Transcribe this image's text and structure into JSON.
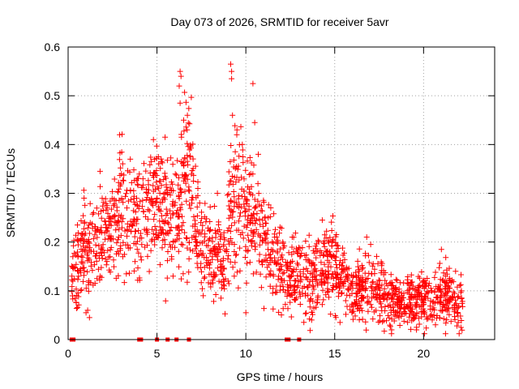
{
  "chart_data": {
    "type": "scatter",
    "title": "Day 073 of 2026, SRMTID for receiver 5avr",
    "xlabel": "GPS time / hours",
    "ylabel": "SRMTID / TECUs",
    "xlim": [
      0,
      24
    ],
    "ylim": [
      0,
      0.6
    ],
    "x_ticks": [
      0,
      5,
      10,
      15,
      20
    ],
    "x_tick_labels": [
      "0",
      "5",
      "10",
      "15",
      "20"
    ],
    "y_ticks": [
      0,
      0.1,
      0.2,
      0.3,
      0.4,
      0.5,
      0.6
    ],
    "y_tick_labels": [
      "0",
      "0.1",
      "0.2",
      "0.3",
      "0.4",
      "0.5",
      "0.6"
    ],
    "grid": true,
    "marker": "plus",
    "color": "#ff0000",
    "gap_markers_x": [
      0.2,
      0.3,
      4.0,
      4.1,
      5.0,
      5.6,
      6.1,
      6.8,
      12.3,
      12.4,
      13.0
    ],
    "series": [
      {
        "name": "SRMTID",
        "x_start": 0.2,
        "x_end": 22.2,
        "envelope": [
          {
            "x": 0.2,
            "mean": 0.12,
            "spread": 0.05
          },
          {
            "x": 0.8,
            "mean": 0.18,
            "spread": 0.07
          },
          {
            "x": 1.5,
            "mean": 0.2,
            "spread": 0.06
          },
          {
            "x": 2.3,
            "mean": 0.22,
            "spread": 0.07
          },
          {
            "x": 3.0,
            "mean": 0.27,
            "spread": 0.09
          },
          {
            "x": 4.0,
            "mean": 0.24,
            "spread": 0.08
          },
          {
            "x": 4.9,
            "mean": 0.28,
            "spread": 0.07
          },
          {
            "x": 6.0,
            "mean": 0.25,
            "spread": 0.09
          },
          {
            "x": 6.6,
            "mean": 0.33,
            "spread": 0.12
          },
          {
            "x": 7.6,
            "mean": 0.18,
            "spread": 0.06
          },
          {
            "x": 8.7,
            "mean": 0.16,
            "spread": 0.06
          },
          {
            "x": 9.3,
            "mean": 0.3,
            "spread": 0.12
          },
          {
            "x": 10.3,
            "mean": 0.27,
            "spread": 0.09
          },
          {
            "x": 11.4,
            "mean": 0.17,
            "spread": 0.06
          },
          {
            "x": 12.5,
            "mean": 0.13,
            "spread": 0.05
          },
          {
            "x": 14.0,
            "mean": 0.13,
            "spread": 0.05
          },
          {
            "x": 14.8,
            "mean": 0.15,
            "spread": 0.06
          },
          {
            "x": 16.0,
            "mean": 0.1,
            "spread": 0.04
          },
          {
            "x": 17.0,
            "mean": 0.11,
            "spread": 0.05
          },
          {
            "x": 18.5,
            "mean": 0.08,
            "spread": 0.035
          },
          {
            "x": 20.0,
            "mean": 0.08,
            "spread": 0.035
          },
          {
            "x": 21.2,
            "mean": 0.09,
            "spread": 0.04
          },
          {
            "x": 22.2,
            "mean": 0.08,
            "spread": 0.04
          }
        ],
        "peaks": [
          {
            "x": 0.9,
            "y": 0.29
          },
          {
            "x": 1.8,
            "y": 0.345
          },
          {
            "x": 2.9,
            "y": 0.42
          },
          {
            "x": 3.5,
            "y": 0.37
          },
          {
            "x": 4.8,
            "y": 0.41
          },
          {
            "x": 6.3,
            "y": 0.55
          },
          {
            "x": 6.35,
            "y": 0.54
          },
          {
            "x": 6.25,
            "y": 0.52
          },
          {
            "x": 6.3,
            "y": 0.485
          },
          {
            "x": 6.5,
            "y": 0.45
          },
          {
            "x": 6.7,
            "y": 0.43
          },
          {
            "x": 7.3,
            "y": 0.31
          },
          {
            "x": 8.4,
            "y": 0.3
          },
          {
            "x": 9.15,
            "y": 0.565
          },
          {
            "x": 9.2,
            "y": 0.55
          },
          {
            "x": 9.2,
            "y": 0.535
          },
          {
            "x": 9.25,
            "y": 0.46
          },
          {
            "x": 9.5,
            "y": 0.43
          },
          {
            "x": 9.8,
            "y": 0.4
          },
          {
            "x": 10.4,
            "y": 0.525
          },
          {
            "x": 10.5,
            "y": 0.445
          },
          {
            "x": 10.7,
            "y": 0.38
          },
          {
            "x": 11.4,
            "y": 0.27
          },
          {
            "x": 14.3,
            "y": 0.245
          },
          {
            "x": 15.0,
            "y": 0.17
          },
          {
            "x": 16.8,
            "y": 0.21
          },
          {
            "x": 21.0,
            "y": 0.185
          },
          {
            "x": 21.8,
            "y": 0.14
          }
        ],
        "lows": [
          {
            "x": 1.2,
            "y": 0.045
          },
          {
            "x": 1.1,
            "y": 0.06
          },
          {
            "x": 7.6,
            "y": 0.09
          },
          {
            "x": 8.6,
            "y": 0.085
          },
          {
            "x": 10.0,
            "y": 0.055
          },
          {
            "x": 13.7,
            "y": 0.04
          },
          {
            "x": 15.3,
            "y": 0.035
          },
          {
            "x": 18.2,
            "y": 0.02
          },
          {
            "x": 19.6,
            "y": 0.02
          },
          {
            "x": 22.0,
            "y": 0.012
          },
          {
            "x": 22.1,
            "y": 0.025
          }
        ],
        "points_per_hour": 90,
        "seed": 73
      }
    ]
  }
}
